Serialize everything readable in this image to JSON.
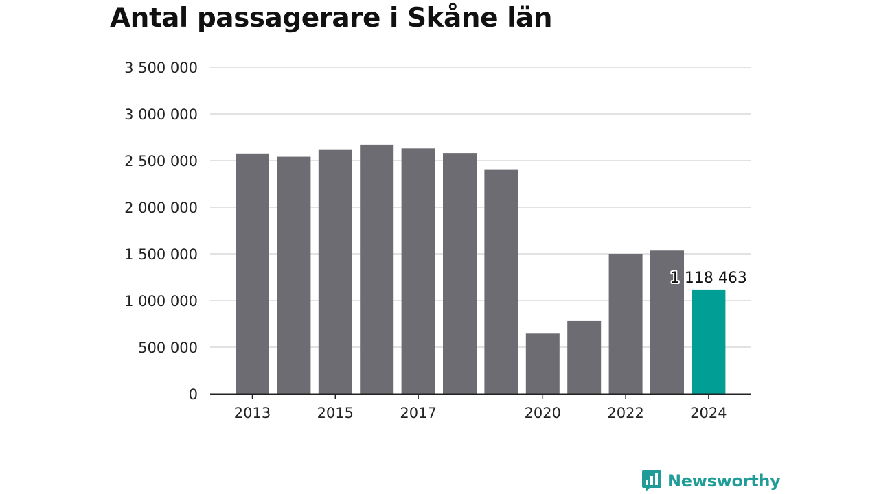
{
  "title": "Antal passagerare i Skåne län",
  "brand": {
    "name": "Newsworthy",
    "icon": "bar-chart-speech-bubble-icon",
    "color": "#1f9c97"
  },
  "colors": {
    "bar": "#6d6c72",
    "highlight": "#009e94",
    "grid": "#d9d9d9",
    "axis": "#222222"
  },
  "chart_data": {
    "type": "bar",
    "categories": [
      "2013",
      "2014",
      "2015",
      "2016",
      "2017",
      "2018",
      "2019",
      "2020",
      "2021",
      "2022",
      "2023",
      "2024"
    ],
    "values": [
      2575000,
      2540000,
      2620000,
      2670000,
      2630000,
      2580000,
      2400000,
      645000,
      780000,
      1500000,
      1535000,
      1118463
    ],
    "title": "Antal passagerare i Skåne län",
    "xlabel": "",
    "ylabel": "",
    "ylim": [
      0,
      3500000
    ],
    "yticks": [
      {
        "value": 0,
        "label": "0"
      },
      {
        "value": 500000,
        "label": "500 000"
      },
      {
        "value": 1000000,
        "label": "1 000 000"
      },
      {
        "value": 1500000,
        "label": "1 500 000"
      },
      {
        "value": 2000000,
        "label": "2 000 000"
      },
      {
        "value": 2500000,
        "label": "2 500 000"
      },
      {
        "value": 3000000,
        "label": "3 000 000"
      },
      {
        "value": 3500000,
        "label": "3 500 000"
      }
    ],
    "xtick_labels": [
      "2013",
      "2015",
      "2017",
      "2020",
      "2022",
      "2024"
    ],
    "highlight": {
      "category": "2024",
      "label": "1 118 463"
    },
    "grid": true,
    "legend": "none"
  }
}
